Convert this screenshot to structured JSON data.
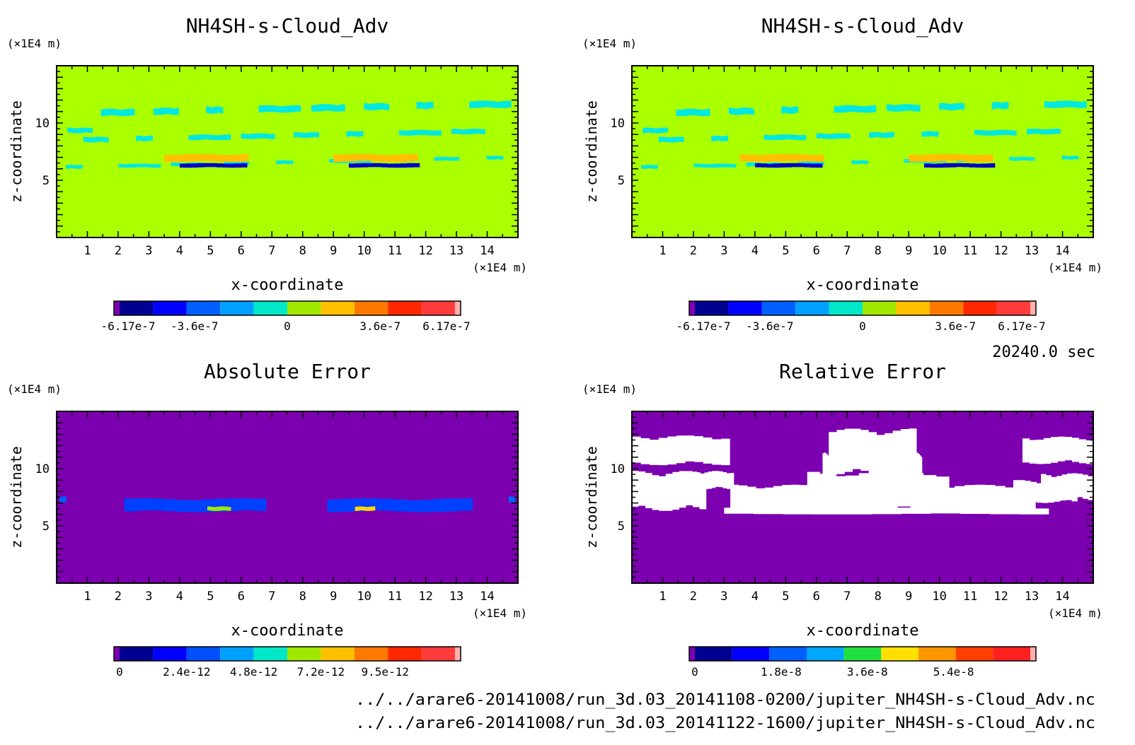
{
  "figure": {
    "time_label": "20240.0 sec",
    "files": [
      "../../arare6-20141008/run_3d.03_20141108-0200/jupiter_NH4SH-s-Cloud_Adv.nc",
      "../../arare6-20141008/run_3d.03_20141122-1600/jupiter_NH4SH-s-Cloud_Adv.nc"
    ]
  },
  "chart_data": [
    {
      "type": "heatmap",
      "title": "NH4SH-s-Cloud_Adv",
      "xlabel": "x-coordinate",
      "ylabel": "z-coordinate",
      "x_unit": "(×1E4 m)",
      "y_unit": "(×1E4 m)",
      "xlim": [
        0,
        15
      ],
      "ylim": [
        0,
        15
      ],
      "xticks": [
        1,
        2,
        3,
        4,
        5,
        6,
        7,
        8,
        9,
        10,
        11,
        12,
        13,
        14
      ],
      "yticks": [
        5,
        10
      ],
      "background_color": "#aaff00",
      "features": [
        {
          "kind": "cloud-edge",
          "color": "#00e8e0",
          "x": [
            0,
            15
          ],
          "z": [
            5.8,
            13.2
          ]
        },
        {
          "kind": "negative-core",
          "color": "#0000c8",
          "x": [
            4.0,
            6.0
          ],
          "z": [
            6.1,
            6.5
          ],
          "value": -6.17e-07
        },
        {
          "kind": "negative-core",
          "color": "#0000c8",
          "x": [
            9.5,
            11.6
          ],
          "z": [
            6.1,
            6.5
          ],
          "value": -6.17e-07
        },
        {
          "kind": "positive-band",
          "color": "#ffc000",
          "x": [
            3.5,
            6.0
          ],
          "z": [
            6.6,
            7.3
          ],
          "value": 3.6e-07
        },
        {
          "kind": "positive-band",
          "color": "#ffc000",
          "x": [
            9.0,
            11.5
          ],
          "z": [
            6.6,
            7.3
          ],
          "value": 3.6e-07
        }
      ],
      "colorbar": {
        "colors": [
          "#8000b0",
          "#000090",
          "#0000ff",
          "#0060ff",
          "#00a0ff",
          "#00e8c8",
          "#a0e800",
          "#ffc000",
          "#ff7800",
          "#ff2800",
          "#ff3c3c",
          "#ffb0b0"
        ],
        "tick_labels": [
          "-6.17e-7",
          "-3.6e-7",
          "0",
          "3.6e-7",
          "6.17e-7"
        ],
        "tick_values": [
          -6.17e-07,
          -3.6e-07,
          0,
          3.6e-07,
          6.17e-07
        ],
        "range": [
          -6.5e-07,
          6.5e-07
        ]
      }
    },
    {
      "type": "heatmap",
      "title": "NH4SH-s-Cloud_Adv",
      "xlabel": "x-coordinate",
      "ylabel": "z-coordinate",
      "x_unit": "(×1E4 m)",
      "y_unit": "(×1E4 m)",
      "xlim": [
        0,
        15
      ],
      "ylim": [
        0,
        15
      ],
      "xticks": [
        1,
        2,
        3,
        4,
        5,
        6,
        7,
        8,
        9,
        10,
        11,
        12,
        13,
        14
      ],
      "yticks": [
        5,
        10
      ],
      "background_color": "#aaff00",
      "features": [
        {
          "kind": "cloud-edge",
          "color": "#00e8e0",
          "x": [
            0,
            15
          ],
          "z": [
            5.8,
            13.2
          ]
        },
        {
          "kind": "negative-core",
          "color": "#0000c8",
          "x": [
            4.0,
            6.0
          ],
          "z": [
            6.1,
            6.5
          ],
          "value": -6.17e-07
        },
        {
          "kind": "negative-core",
          "color": "#0000c8",
          "x": [
            9.5,
            11.6
          ],
          "z": [
            6.1,
            6.5
          ],
          "value": -6.17e-07
        },
        {
          "kind": "positive-band",
          "color": "#ffc000",
          "x": [
            3.5,
            6.0
          ],
          "z": [
            6.6,
            7.3
          ],
          "value": 3.6e-07
        },
        {
          "kind": "positive-band",
          "color": "#ffc000",
          "x": [
            9.0,
            11.5
          ],
          "z": [
            6.6,
            7.3
          ],
          "value": 3.6e-07
        }
      ],
      "colorbar": {
        "colors": [
          "#8000b0",
          "#000090",
          "#0000ff",
          "#0060ff",
          "#00a0ff",
          "#00e8c8",
          "#a0e800",
          "#ffc000",
          "#ff7800",
          "#ff2800",
          "#ff3c3c",
          "#ffb0b0"
        ],
        "tick_labels": [
          "-6.17e-7",
          "-3.6e-7",
          "0",
          "3.6e-7",
          "6.17e-7"
        ],
        "tick_values": [
          -6.17e-07,
          -3.6e-07,
          0,
          3.6e-07,
          6.17e-07
        ],
        "range": [
          -6.5e-07,
          6.5e-07
        ]
      }
    },
    {
      "type": "heatmap",
      "title": "Absolute Error",
      "xlabel": "x-coordinate",
      "ylabel": "z-coordinate",
      "x_unit": "(×1E4 m)",
      "y_unit": "(×1E4 m)",
      "xlim": [
        0,
        15
      ],
      "ylim": [
        0,
        15
      ],
      "xticks": [
        1,
        2,
        3,
        4,
        5,
        6,
        7,
        8,
        9,
        10,
        11,
        12,
        13,
        14
      ],
      "yticks": [
        5,
        10
      ],
      "background_color": "#7c00b0",
      "features": [
        {
          "kind": "error-band",
          "color": "#0040ff",
          "x": [
            2.2,
            6.4
          ],
          "z": [
            6.2,
            7.4
          ]
        },
        {
          "kind": "error-band",
          "color": "#0040ff",
          "x": [
            8.8,
            13.1
          ],
          "z": [
            6.2,
            7.4
          ]
        },
        {
          "kind": "error-peak",
          "color": "#a0e800",
          "x": [
            4.9,
            5.6
          ],
          "z": [
            6.3,
            6.7
          ],
          "value": 9.5e-12
        },
        {
          "kind": "error-peak",
          "color": "#ffd800",
          "x": [
            9.7,
            10.3
          ],
          "z": [
            6.3,
            6.7
          ],
          "value": 9.5e-12
        },
        {
          "kind": "edge-spot",
          "color": "#0060ff",
          "x": [
            0.1,
            0.3
          ],
          "z": [
            7.0,
            7.6
          ]
        },
        {
          "kind": "edge-spot",
          "color": "#0060ff",
          "x": [
            14.7,
            14.9
          ],
          "z": [
            7.0,
            7.6
          ]
        }
      ],
      "colorbar": {
        "colors": [
          "#7c00b0",
          "#000090",
          "#0000ff",
          "#0050ff",
          "#00a0ff",
          "#00e8c8",
          "#a0e800",
          "#ffc000",
          "#ff7800",
          "#ff2800",
          "#ff3c3c",
          "#ffb0b0"
        ],
        "tick_labels": [
          "0",
          "2.4e-12",
          "4.8e-12",
          "7.2e-12",
          "9.5e-12"
        ],
        "tick_values": [
          0,
          2.4e-12,
          4.8e-12,
          7.2e-12,
          9.5e-12
        ],
        "range": [
          0,
          1.2e-11
        ]
      }
    },
    {
      "type": "heatmap",
      "title": "Relative Error",
      "xlabel": "x-coordinate",
      "ylabel": "z-coordinate",
      "x_unit": "(×1E4 m)",
      "y_unit": "(×1E4 m)",
      "xlim": [
        0,
        15
      ],
      "ylim": [
        0,
        15
      ],
      "xticks": [
        1,
        2,
        3,
        4,
        5,
        6,
        7,
        8,
        9,
        10,
        11,
        12,
        13,
        14
      ],
      "yticks": [
        5,
        10
      ],
      "background_color": "#7c00b0",
      "features": [
        {
          "kind": "undefined-region",
          "color": "#ffffff",
          "x": [
            0,
            15
          ],
          "z": [
            5.8,
            13.5
          ]
        }
      ],
      "colorbar": {
        "colors": [
          "#7c00b0",
          "#000090",
          "#0000ff",
          "#0060ff",
          "#00a8ff",
          "#20e040",
          "#ffe000",
          "#ff9600",
          "#ff4000",
          "#ff2020",
          "#ffb0b0"
        ],
        "tick_labels": [
          "0",
          "1.8e-8",
          "3.6e-8",
          "5.4e-8"
        ],
        "tick_values": [
          0,
          1.8e-08,
          3.6e-08,
          5.4e-08
        ],
        "range": [
          0,
          7e-08
        ]
      }
    }
  ]
}
